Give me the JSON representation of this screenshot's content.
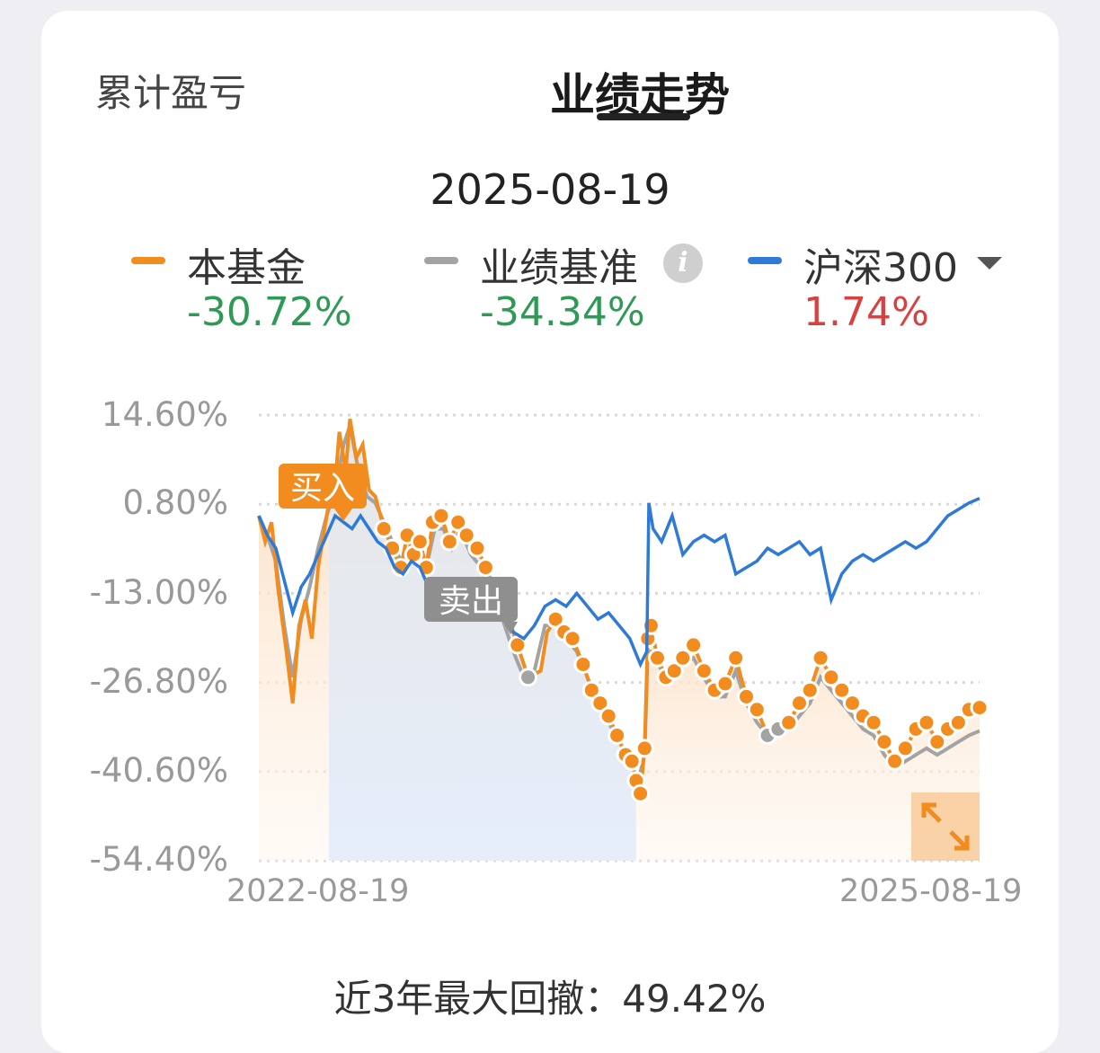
{
  "tabs": {
    "left_label": "累计盈亏",
    "active_label": "业绩走势"
  },
  "selected_date": "2025-08-19",
  "legend": [
    {
      "name": "本基金",
      "value": "-30.72%",
      "swatch_color": "#f28c1e",
      "value_color": "#2e9a55"
    },
    {
      "name": "业绩基准",
      "value": "-34.34%",
      "swatch_color": "#a3a3a3",
      "value_color": "#2e9a55",
      "icon": "info-icon"
    },
    {
      "name": "沪深300",
      "value": "1.74%",
      "swatch_color": "#2f7ad6",
      "value_color": "#d94040",
      "icon": "dropdown-icon"
    }
  ],
  "markers": {
    "buy_label": "买入",
    "sell_label": "卖出"
  },
  "expand_icon": "expand-icon",
  "footer": "近3年最大回撤：49.42%",
  "chart_data": {
    "type": "line",
    "yticks": [
      "14.60%",
      "0.80%",
      "-13.00%",
      "-26.80%",
      "-40.60%",
      "-54.40%"
    ],
    "ylim": [
      -54.4,
      14.6
    ],
    "xticks": [
      "2022-08-19",
      "2025-08-19"
    ],
    "xlim": [
      0,
      36
    ],
    "legend_position": "top",
    "grid": "horizontal-dotted",
    "holding_period": {
      "buy_month": 3.3,
      "sell_month": 17.8
    },
    "series": [
      {
        "name": "本基金",
        "color": "#f28c1e",
        "points": [
          [
            0,
            -1
          ],
          [
            0.3,
            -5
          ],
          [
            0.6,
            -2
          ],
          [
            0.9,
            -12
          ],
          [
            1.3,
            -22
          ],
          [
            1.6,
            -30
          ],
          [
            1.9,
            -18
          ],
          [
            2.2,
            -14
          ],
          [
            2.5,
            -20
          ],
          [
            2.8,
            -9
          ],
          [
            3.1,
            -3
          ],
          [
            3.3,
            0.8
          ],
          [
            3.6,
            4
          ],
          [
            3.8,
            12
          ],
          [
            4.1,
            6
          ],
          [
            4.3,
            14
          ],
          [
            4.6,
            8
          ],
          [
            4.9,
            10
          ],
          [
            5.2,
            3
          ],
          [
            5.5,
            2
          ],
          [
            5.9,
            -3
          ],
          [
            6.3,
            -6
          ],
          [
            6.7,
            -9
          ],
          [
            7.0,
            -4
          ],
          [
            7.3,
            -7
          ],
          [
            7.6,
            -5
          ],
          [
            7.9,
            -9
          ],
          [
            8.2,
            -2
          ],
          [
            8.6,
            -1
          ],
          [
            9.0,
            -5
          ],
          [
            9.4,
            -2
          ],
          [
            9.8,
            -4
          ],
          [
            10.3,
            -6
          ],
          [
            10.7,
            -9
          ],
          [
            11.2,
            -13
          ],
          [
            11.7,
            -16
          ],
          [
            12.2,
            -21
          ],
          [
            12.7,
            -26
          ],
          [
            13.3,
            -25
          ],
          [
            13.6,
            -19
          ],
          [
            14.0,
            -17
          ],
          [
            14.4,
            -19
          ],
          [
            14.8,
            -20
          ],
          [
            15.3,
            -24
          ],
          [
            15.7,
            -28
          ],
          [
            16.1,
            -30
          ],
          [
            16.5,
            -32
          ],
          [
            16.9,
            -35
          ],
          [
            17.3,
            -38
          ],
          [
            17.6,
            -39
          ],
          [
            17.8,
            -42
          ],
          [
            18.0,
            -44
          ],
          [
            18.2,
            -37
          ],
          [
            18.35,
            -20
          ],
          [
            18.5,
            -18
          ],
          [
            18.8,
            -23
          ],
          [
            19.2,
            -26
          ],
          [
            19.6,
            -25
          ],
          [
            20.0,
            -23
          ],
          [
            20.5,
            -21
          ],
          [
            21.0,
            -25
          ],
          [
            21.5,
            -28
          ],
          [
            22.0,
            -27
          ],
          [
            22.5,
            -23
          ],
          [
            23.0,
            -29
          ],
          [
            23.5,
            -31
          ],
          [
            24.0,
            -35
          ],
          [
            24.5,
            -34
          ],
          [
            25.0,
            -33
          ],
          [
            25.5,
            -30
          ],
          [
            26.0,
            -28
          ],
          [
            26.5,
            -23
          ],
          [
            27.0,
            -26
          ],
          [
            27.5,
            -28
          ],
          [
            28.0,
            -30
          ],
          [
            28.5,
            -32
          ],
          [
            29.0,
            -33
          ],
          [
            29.5,
            -36
          ],
          [
            30.0,
            -39
          ],
          [
            30.5,
            -37
          ],
          [
            31.0,
            -34
          ],
          [
            31.5,
            -33
          ],
          [
            32.0,
            -36
          ],
          [
            32.5,
            -34
          ],
          [
            33.0,
            -33
          ],
          [
            33.5,
            -31
          ],
          [
            34.0,
            -30.7
          ]
        ]
      },
      {
        "name": "业绩基准",
        "color": "#a3a3a3",
        "points": [
          [
            0,
            -1
          ],
          [
            0.4,
            -4
          ],
          [
            0.8,
            -8
          ],
          [
            1.2,
            -18
          ],
          [
            1.6,
            -26
          ],
          [
            2.0,
            -17
          ],
          [
            2.4,
            -12
          ],
          [
            2.8,
            -6
          ],
          [
            3.2,
            -1
          ],
          [
            3.6,
            3
          ],
          [
            4.0,
            10
          ],
          [
            4.3,
            13
          ],
          [
            4.7,
            6
          ],
          [
            5.1,
            2
          ],
          [
            5.5,
            1
          ],
          [
            5.9,
            -2
          ],
          [
            6.3,
            -5
          ],
          [
            6.7,
            -8
          ],
          [
            7.1,
            -6
          ],
          [
            7.5,
            -7
          ],
          [
            7.9,
            -9
          ],
          [
            8.3,
            -3
          ],
          [
            8.7,
            -3
          ],
          [
            9.1,
            -6
          ],
          [
            9.5,
            -3
          ],
          [
            10.0,
            -7
          ],
          [
            10.5,
            -9
          ],
          [
            11.0,
            -14
          ],
          [
            11.5,
            -17
          ],
          [
            12.0,
            -22
          ],
          [
            12.5,
            -26
          ],
          [
            13.0,
            -25
          ],
          [
            13.5,
            -18
          ],
          [
            14.0,
            -18
          ],
          [
            14.5,
            -20
          ],
          [
            15.0,
            -22
          ],
          [
            15.5,
            -26
          ],
          [
            16.0,
            -30
          ],
          [
            16.5,
            -33
          ],
          [
            17.0,
            -36
          ],
          [
            17.5,
            -39
          ],
          [
            17.9,
            -42
          ],
          [
            18.2,
            -38
          ],
          [
            18.35,
            -22
          ],
          [
            18.6,
            -22
          ],
          [
            19.0,
            -25
          ],
          [
            19.5,
            -26
          ],
          [
            20.0,
            -24
          ],
          [
            20.5,
            -23
          ],
          [
            21.0,
            -26
          ],
          [
            21.5,
            -29
          ],
          [
            22.0,
            -29
          ],
          [
            22.5,
            -25
          ],
          [
            23.0,
            -30
          ],
          [
            23.5,
            -33
          ],
          [
            24.0,
            -35
          ],
          [
            24.5,
            -35
          ],
          [
            25.0,
            -34
          ],
          [
            25.5,
            -32
          ],
          [
            26.0,
            -30
          ],
          [
            26.5,
            -26
          ],
          [
            27.0,
            -28
          ],
          [
            27.5,
            -30
          ],
          [
            28.0,
            -32
          ],
          [
            28.5,
            -34
          ],
          [
            29.0,
            -35
          ],
          [
            29.5,
            -38
          ],
          [
            30.0,
            -40
          ],
          [
            30.5,
            -39
          ],
          [
            31.0,
            -38
          ],
          [
            31.5,
            -37
          ],
          [
            32.0,
            -38
          ],
          [
            32.5,
            -37
          ],
          [
            33.0,
            -36
          ],
          [
            33.5,
            -35
          ],
          [
            34.0,
            -34.3
          ]
        ]
      },
      {
        "name": "沪深300",
        "color": "#2f7ad6",
        "points": [
          [
            0,
            -1
          ],
          [
            0.4,
            -4
          ],
          [
            0.8,
            -6
          ],
          [
            1.2,
            -11
          ],
          [
            1.6,
            -16
          ],
          [
            2.0,
            -12
          ],
          [
            2.4,
            -10
          ],
          [
            2.8,
            -7
          ],
          [
            3.2,
            -4
          ],
          [
            3.6,
            -1
          ],
          [
            4.0,
            -2
          ],
          [
            4.4,
            -3
          ],
          [
            4.8,
            -1
          ],
          [
            5.2,
            -3
          ],
          [
            5.6,
            -5
          ],
          [
            6.0,
            -6
          ],
          [
            6.4,
            -9
          ],
          [
            6.8,
            -10
          ],
          [
            7.2,
            -8
          ],
          [
            7.6,
            -9
          ],
          [
            8.0,
            -12
          ],
          [
            8.5,
            -11
          ],
          [
            9.0,
            -13
          ],
          [
            9.5,
            -13
          ],
          [
            10.0,
            -11
          ],
          [
            10.5,
            -12
          ],
          [
            11.0,
            -13
          ],
          [
            11.5,
            -16
          ],
          [
            12.0,
            -19
          ],
          [
            12.5,
            -20
          ],
          [
            13.0,
            -18
          ],
          [
            13.5,
            -15
          ],
          [
            14.0,
            -14
          ],
          [
            14.5,
            -15
          ],
          [
            15.0,
            -13
          ],
          [
            15.5,
            -15
          ],
          [
            16.0,
            -17
          ],
          [
            16.5,
            -16
          ],
          [
            17.0,
            -18
          ],
          [
            17.5,
            -20
          ],
          [
            18.0,
            -24
          ],
          [
            18.3,
            -22
          ],
          [
            18.4,
            1
          ],
          [
            18.6,
            -3
          ],
          [
            19.0,
            -5
          ],
          [
            19.5,
            -1
          ],
          [
            20.0,
            -7
          ],
          [
            20.5,
            -5
          ],
          [
            21.0,
            -4
          ],
          [
            21.5,
            -5
          ],
          [
            22.0,
            -4
          ],
          [
            22.5,
            -10
          ],
          [
            23.0,
            -9
          ],
          [
            23.5,
            -8
          ],
          [
            24.0,
            -6
          ],
          [
            24.5,
            -7
          ],
          [
            25.0,
            -6
          ],
          [
            25.5,
            -5
          ],
          [
            26.0,
            -7
          ],
          [
            26.5,
            -6
          ],
          [
            27.0,
            -14
          ],
          [
            27.5,
            -10
          ],
          [
            28.0,
            -8
          ],
          [
            28.5,
            -7
          ],
          [
            29.0,
            -8
          ],
          [
            29.5,
            -7
          ],
          [
            30.0,
            -6
          ],
          [
            30.5,
            -5
          ],
          [
            31.0,
            -6
          ],
          [
            31.5,
            -5
          ],
          [
            32.0,
            -3
          ],
          [
            32.5,
            -1
          ],
          [
            33.0,
            0
          ],
          [
            33.5,
            1
          ],
          [
            34.0,
            1.7
          ]
        ]
      }
    ]
  }
}
